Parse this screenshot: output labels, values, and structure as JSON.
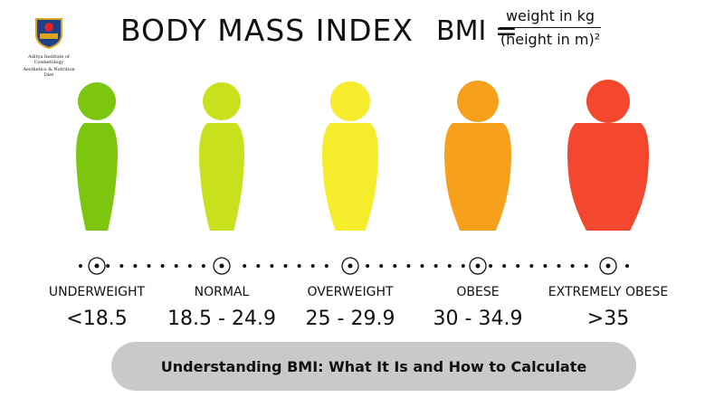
{
  "logo": {
    "text": "Aditya Institute of Cosmetology",
    "subtext": "Aesthetics & Nutrition Diet",
    "badge": "ICAN"
  },
  "title": "BODY MASS INDEX",
  "formula": {
    "lhs": "BMI =",
    "numerator": "weight in kg",
    "denominator": "(height in m)²"
  },
  "categories": [
    {
      "label": "UNDERWEIGHT",
      "range": "<18.5",
      "color": "#7cc60f"
    },
    {
      "label": "NORMAL",
      "range": "18.5 - 24.9",
      "color": "#c8e11c"
    },
    {
      "label": "OVERWEIGHT",
      "range": "25 - 29.9",
      "color": "#f5ec2c"
    },
    {
      "label": "OBESE",
      "range": "30 - 34.9",
      "color": "#f7a01c"
    },
    {
      "label": "EXTREMELY OBESE",
      "range": ">35",
      "color": "#f3482e"
    }
  ],
  "banner": "Understanding BMI: What It Is and How to Calculate"
}
